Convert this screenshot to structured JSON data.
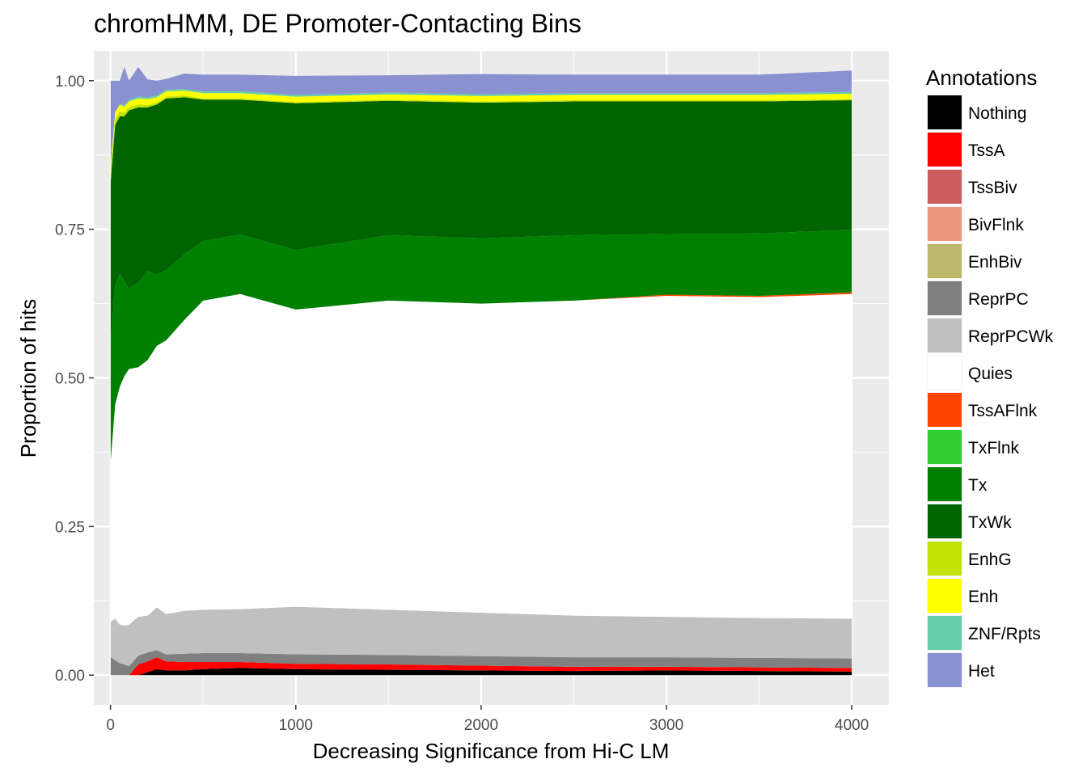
{
  "chart_data": {
    "type": "area",
    "title": "chromHMM, DE Promoter-Contacting Bins",
    "xlabel": "Decreasing Significance from Hi-C LM",
    "ylabel": "Proportion of hits",
    "xlim": [
      -90,
      4200
    ],
    "ylim": [
      -0.05,
      1.05
    ],
    "x_ticks": [
      0,
      1000,
      2000,
      3000,
      4000
    ],
    "x_tick_labels": [
      "0",
      "1000",
      "2000",
      "3000",
      "4000"
    ],
    "y_ticks": [
      0,
      0.25,
      0.5,
      0.75,
      1.0
    ],
    "y_tick_labels": [
      "0.00",
      "0.25",
      "0.50",
      "0.75",
      "1.00"
    ],
    "stacked": true,
    "stack_order": "bottom-to-top",
    "grid": true,
    "legend_position": "right",
    "legend_title": "Annotations",
    "x": [
      1,
      25,
      50,
      75,
      100,
      150,
      200,
      250,
      300,
      400,
      500,
      700,
      1000,
      1500,
      2000,
      2500,
      3000,
      3500,
      4000
    ],
    "series": [
      {
        "name": "Nothing",
        "color": "#000000",
        "values": [
          0,
          0,
          0,
          0,
          0,
          0,
          0.005,
          0.01,
          0.008,
          0.008,
          0.01,
          0.012,
          0.01,
          0.009,
          0.008,
          0.007,
          0.008,
          0.007,
          0.006
        ]
      },
      {
        "name": "TssA",
        "color": "#ff0000",
        "values": [
          0,
          0,
          0,
          0,
          0,
          0.018,
          0.018,
          0.02,
          0.015,
          0.014,
          0.012,
          0.01,
          0.009,
          0.009,
          0.008,
          0.007,
          0.006,
          0.006,
          0.006
        ]
      },
      {
        "name": "TssBiv",
        "color": "#cd5c5c",
        "values": [
          0,
          0,
          0,
          0,
          0,
          0,
          0,
          0,
          0,
          0,
          0,
          0,
          0,
          0,
          0,
          0,
          0,
          0,
          0
        ]
      },
      {
        "name": "BivFlnk",
        "color": "#e9967a",
        "values": [
          0,
          0,
          0,
          0,
          0,
          0,
          0,
          0,
          0,
          0,
          0,
          0,
          0,
          0,
          0,
          0,
          0,
          0,
          0
        ]
      },
      {
        "name": "EnhBiv",
        "color": "#bdb76b",
        "values": [
          0,
          0,
          0,
          0,
          0,
          0,
          0,
          0,
          0,
          0,
          0,
          0,
          0,
          0,
          0,
          0,
          0,
          0,
          0
        ]
      },
      {
        "name": "ReprPC",
        "color": "#808080",
        "values": [
          0.03,
          0.025,
          0.02,
          0.018,
          0.015,
          0.015,
          0.015,
          0.012,
          0.012,
          0.014,
          0.015,
          0.015,
          0.016,
          0.016,
          0.016,
          0.016,
          0.016,
          0.016,
          0.016
        ]
      },
      {
        "name": "ReprPCWk",
        "color": "#c0c0c0",
        "values": [
          0.06,
          0.07,
          0.065,
          0.065,
          0.07,
          0.065,
          0.062,
          0.072,
          0.068,
          0.072,
          0.073,
          0.074,
          0.08,
          0.076,
          0.073,
          0.07,
          0.068,
          0.067,
          0.067
        ]
      },
      {
        "name": "Quies",
        "color": "#ffffff",
        "values": [
          0.27,
          0.36,
          0.4,
          0.42,
          0.43,
          0.42,
          0.43,
          0.44,
          0.46,
          0.49,
          0.52,
          0.53,
          0.5,
          0.52,
          0.52,
          0.53,
          0.54,
          0.54,
          0.546
        ]
      },
      {
        "name": "TssAFlnk",
        "color": "#ff4500",
        "values": [
          0,
          0,
          0,
          0,
          0,
          0,
          0,
          0,
          0,
          0,
          0,
          0,
          0,
          0,
          0,
          0,
          0.002,
          0.002,
          0.003
        ]
      },
      {
        "name": "TxFlnk",
        "color": "#32cd32",
        "values": [
          0,
          0,
          0,
          0,
          0,
          0,
          0,
          0,
          0,
          0,
          0,
          0,
          0,
          0,
          0,
          0,
          0,
          0,
          0
        ]
      },
      {
        "name": "Tx",
        "color": "#008000",
        "values": [
          0.2,
          0.2,
          0.19,
          0.16,
          0.135,
          0.142,
          0.15,
          0.12,
          0.118,
          0.11,
          0.1,
          0.1,
          0.1,
          0.11,
          0.11,
          0.11,
          0.102,
          0.105,
          0.105
        ]
      },
      {
        "name": "TxWk",
        "color": "#006400",
        "values": [
          0.27,
          0.27,
          0.265,
          0.277,
          0.3,
          0.295,
          0.275,
          0.286,
          0.289,
          0.264,
          0.238,
          0.227,
          0.247,
          0.226,
          0.228,
          0.225,
          0.223,
          0.222,
          0.218
        ]
      },
      {
        "name": "EnhG",
        "color": "#c2e105",
        "values": [
          0.02,
          0.01,
          0.008,
          0.006,
          0.005,
          0.005,
          0.004,
          0.003,
          0.003,
          0.003,
          0.002,
          0.002,
          0.002,
          0.002,
          0.002,
          0.002,
          0.002,
          0.002,
          0.002
        ]
      },
      {
        "name": "Enh",
        "color": "#ffff00",
        "values": [
          0.01,
          0.012,
          0.012,
          0.01,
          0.01,
          0.01,
          0.01,
          0.009,
          0.009,
          0.008,
          0.009,
          0.009,
          0.009,
          0.009,
          0.009,
          0.009,
          0.009,
          0.009,
          0.009
        ]
      },
      {
        "name": "ZNF/Rpts",
        "color": "#66cdaa",
        "values": [
          0,
          0,
          0,
          0.003,
          0.003,
          0.003,
          0.003,
          0.003,
          0.003,
          0.003,
          0.003,
          0.003,
          0.003,
          0.003,
          0.003,
          0.003,
          0.003,
          0.003,
          0.003
        ]
      },
      {
        "name": "Het",
        "color": "#8a91d0",
        "values": [
          0.14,
          0.053,
          0.04,
          0.064,
          0.032,
          0.05,
          0.03,
          0.025,
          0.018,
          0.026,
          0.028,
          0.028,
          0.032,
          0.029,
          0.034,
          0.031,
          0.031,
          0.031,
          0.036
        ]
      }
    ]
  }
}
